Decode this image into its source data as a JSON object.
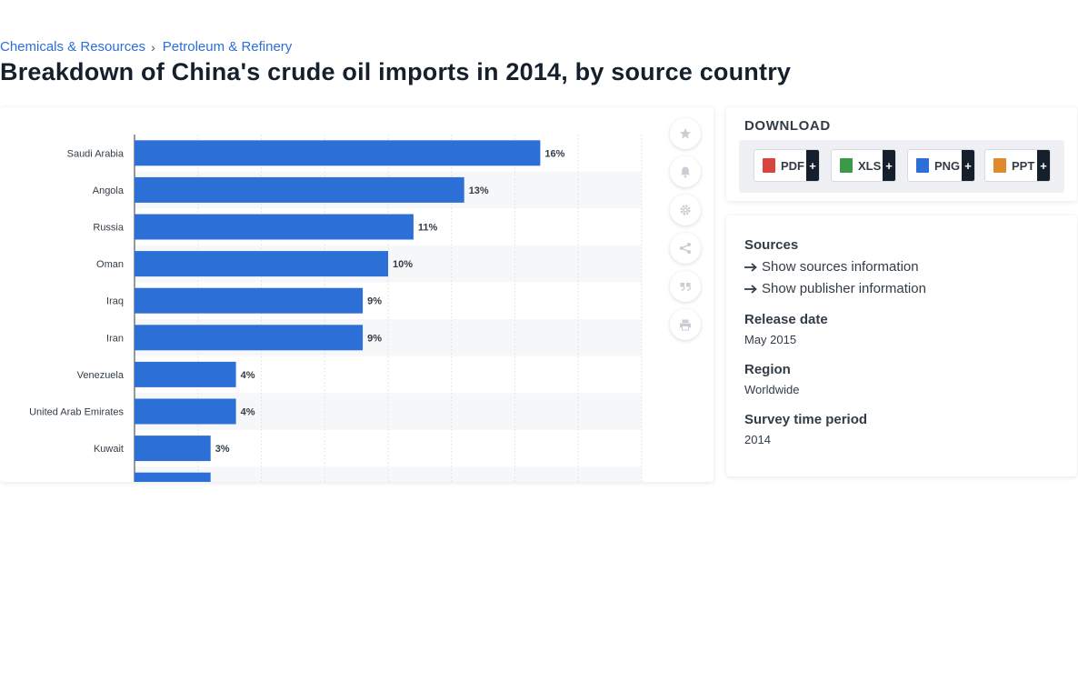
{
  "breadcrumb": {
    "item1": "Chemicals & Resources",
    "separator": "›",
    "item2": "Petroleum & Refinery"
  },
  "page_title": "Breakdown of China's crude oil imports in 2014, by source country",
  "tools": [
    "star-icon",
    "bell-icon",
    "gear-icon",
    "share-icon",
    "quote-icon",
    "print-icon"
  ],
  "download": {
    "title": "DOWNLOAD",
    "buttons": [
      {
        "label": "PDF",
        "plus": "+",
        "icon": "pdf-file-icon",
        "color": "#d9443c"
      },
      {
        "label": "XLS",
        "plus": "+",
        "icon": "xls-file-icon",
        "color": "#3a9a46"
      },
      {
        "label": "PNG",
        "plus": "+",
        "icon": "png-file-icon",
        "color": "#2c6fd6"
      },
      {
        "label": "PPT",
        "plus": "+",
        "icon": "ppt-file-icon",
        "color": "#e08a2c"
      }
    ]
  },
  "info": {
    "sources_heading": "Sources",
    "show_sources": "Show sources information",
    "show_publisher": "Show publisher information",
    "release_heading": "Release date",
    "release_value": "May 2015",
    "region_heading": "Region",
    "region_value": "Worldwide",
    "survey_heading": "Survey time period",
    "survey_value": "2014"
  },
  "colors": {
    "bar": "#2c6fd6",
    "link": "#2c6fd6",
    "title": "#16202c"
  },
  "chart_data": {
    "type": "bar",
    "orientation": "horizontal",
    "categories": [
      "Saudi Arabia",
      "Angola",
      "Russia",
      "Oman",
      "Iraq",
      "Iran",
      "Venezuela",
      "United Arab Emirates",
      "Kuwait"
    ],
    "values": [
      16,
      13,
      11,
      10,
      9,
      9,
      4,
      4,
      3
    ],
    "value_labels": [
      "16%",
      "13%",
      "11%",
      "10%",
      "9%",
      "9%",
      "4%",
      "4%",
      "3%"
    ],
    "partial_bar_value": 3,
    "xlim": [
      0,
      20
    ],
    "grid": true,
    "title": "",
    "xlabel": "",
    "ylabel": ""
  }
}
